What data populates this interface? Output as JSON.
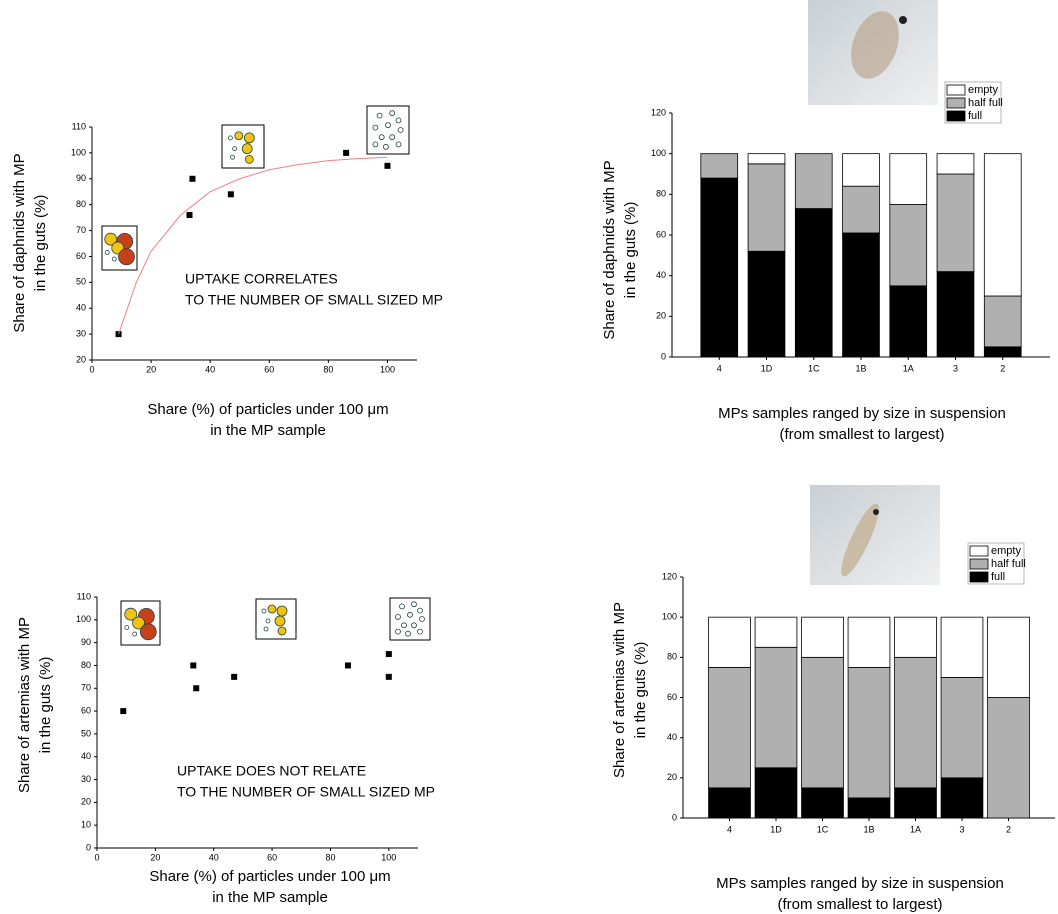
{
  "chart_data": [
    {
      "type": "scatter",
      "y_label": [
        "Share of daphnids with MP",
        "in the guts (%)"
      ],
      "x_label": [
        "Share (%) of particles  under 100  μm",
        "in the MP sample"
      ],
      "annotation": [
        "UPTAKE CORRELATES",
        "TO THE NUMBER OF SMALL SIZED MP"
      ],
      "xlim": [
        0,
        110
      ],
      "xticks": [
        0,
        20,
        40,
        60,
        80,
        100
      ],
      "ylim": [
        20,
        110
      ],
      "yticks": [
        20,
        30,
        40,
        50,
        60,
        70,
        80,
        90,
        100,
        110
      ],
      "series": [
        {
          "color": "#000000",
          "mode": "markers",
          "x": [
            9,
            33,
            34,
            47,
            86,
            100
          ],
          "values": [
            30,
            76,
            90,
            84,
            100,
            95
          ]
        },
        {
          "color": "#f08080",
          "mode": "line",
          "x": [
            9,
            15,
            20,
            30,
            40,
            50,
            60,
            70,
            80,
            90,
            100
          ],
          "values": [
            30,
            50,
            62,
            76,
            85,
            90,
            93.5,
            95.5,
            97,
            97.8,
            98.3
          ]
        }
      ]
    },
    {
      "type": "stacked_bar",
      "y_label": [
        "Share of daphnids with MP",
        "in the guts (%)"
      ],
      "x_label": [
        "MPs samples ranged by size in suspension",
        "(from smallest to largest)"
      ],
      "categories": [
        "4",
        "1D",
        "1C",
        "1B",
        "1A",
        "3",
        "2"
      ],
      "ylim": [
        0,
        120
      ],
      "yticks": [
        0,
        20,
        40,
        60,
        80,
        100,
        120
      ],
      "series": [
        {
          "name": "full",
          "color": "#000000",
          "values": [
            88,
            52,
            73,
            61,
            35,
            42,
            5
          ]
        },
        {
          "name": "half full",
          "color": "#b0b0b0",
          "values": [
            12,
            43,
            27,
            23,
            40,
            48,
            25
          ]
        },
        {
          "name": "empty",
          "color": "#ffffff",
          "values": [
            0,
            5,
            0,
            16,
            25,
            10,
            70
          ]
        }
      ]
    },
    {
      "type": "scatter",
      "y_label": [
        "Share of artemias  with MP",
        "in the guts (%)"
      ],
      "x_label": [
        "Share (%) of particles  under 100  μm",
        "in the MP sample"
      ],
      "annotation": [
        "UPTAKE DOES NOT RELATE",
        "TO THE NUMBER OF SMALL SIZED MP"
      ],
      "xlim": [
        0,
        110
      ],
      "xticks": [
        0,
        20,
        40,
        60,
        80,
        100
      ],
      "ylim": [
        0,
        110
      ],
      "yticks": [
        0,
        10,
        20,
        30,
        40,
        50,
        60,
        70,
        80,
        90,
        100,
        110
      ],
      "series": [
        {
          "color": "#000000",
          "mode": "markers",
          "x": [
            9,
            33,
            34,
            47,
            86,
            100,
            100
          ],
          "values": [
            60,
            80,
            70,
            75,
            80,
            85,
            75
          ]
        }
      ]
    },
    {
      "type": "stacked_bar",
      "y_label": [
        "Share of artemias  with MP",
        "in the guts (%)"
      ],
      "x_label": [
        "MPs samples ranged by size in suspension",
        "(from smallest to largest)"
      ],
      "categories": [
        "4",
        "1D",
        "1C",
        "1B",
        "1A",
        "3",
        "2"
      ],
      "ylim": [
        0,
        120
      ],
      "yticks": [
        0,
        20,
        40,
        60,
        80,
        100,
        120
      ],
      "series": [
        {
          "name": "full",
          "color": "#000000",
          "values": [
            15,
            25,
            15,
            10,
            15,
            20,
            0
          ]
        },
        {
          "name": "half full",
          "color": "#b0b0b0",
          "values": [
            60,
            60,
            65,
            65,
            65,
            50,
            60
          ]
        },
        {
          "name": "empty",
          "color": "#ffffff",
          "values": [
            25,
            15,
            20,
            25,
            20,
            30,
            40
          ]
        }
      ]
    }
  ]
}
